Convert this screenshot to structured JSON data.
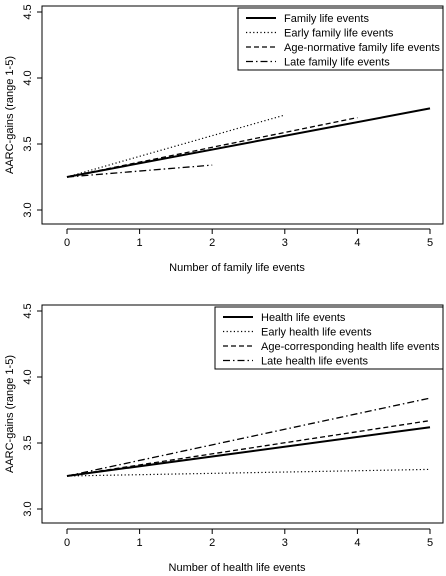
{
  "chart_data": [
    {
      "type": "line",
      "xlabel": "Number of family life events",
      "ylabel": "AARC-gains (range 1-5)",
      "xlim": [
        0,
        5
      ],
      "ylim": [
        3.0,
        4.5
      ],
      "xticks": [
        "0",
        "1",
        "2",
        "3",
        "4",
        "5"
      ],
      "yticks": [
        "3.0",
        "3.5",
        "4.0",
        "4.5"
      ],
      "grid": false,
      "legend_position": "top-right",
      "series": [
        {
          "name": "Family life events",
          "style": "solid",
          "x": [
            0,
            5
          ],
          "y": [
            3.25,
            3.77
          ]
        },
        {
          "name": "Early family life events",
          "style": "dotted",
          "x": [
            0,
            3
          ],
          "y": [
            3.25,
            3.72
          ]
        },
        {
          "name": "Age-normative family life events",
          "style": "dashed",
          "x": [
            0,
            4
          ],
          "y": [
            3.25,
            3.7
          ]
        },
        {
          "name": "Late family life events",
          "style": "dashdot",
          "x": [
            0,
            2
          ],
          "y": [
            3.25,
            3.34
          ]
        }
      ]
    },
    {
      "type": "line",
      "xlabel": "Number of health life events",
      "ylabel": "AARC-gains (range 1-5)",
      "xlim": [
        0,
        5
      ],
      "ylim": [
        3.0,
        4.5
      ],
      "xticks": [
        "0",
        "1",
        "2",
        "3",
        "4",
        "5"
      ],
      "yticks": [
        "3.0",
        "3.5",
        "4.0",
        "4.5"
      ],
      "grid": false,
      "legend_position": "top-right",
      "series": [
        {
          "name": "Health life events",
          "style": "solid",
          "x": [
            0,
            5
          ],
          "y": [
            3.25,
            3.62
          ]
        },
        {
          "name": "Early health life events",
          "style": "dotted",
          "x": [
            0,
            5
          ],
          "y": [
            3.25,
            3.3
          ]
        },
        {
          "name": "Age-corresponding health life events",
          "style": "dashed",
          "x": [
            0,
            5
          ],
          "y": [
            3.25,
            3.67
          ]
        },
        {
          "name": "Late health life events",
          "style": "dashdot",
          "x": [
            0,
            5
          ],
          "y": [
            3.25,
            3.84
          ]
        }
      ]
    }
  ]
}
